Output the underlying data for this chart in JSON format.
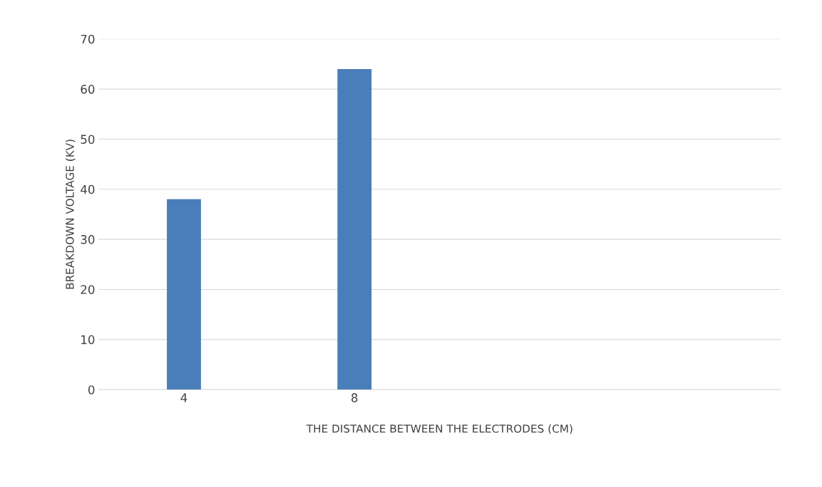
{
  "chart_data": {
    "type": "bar",
    "xlabel": "THE DISTANCE BETWEEN THE ELECTRODES (CM)",
    "ylabel": "BREAKDOWN VOLTAGE (KV)",
    "categories": [
      "4",
      "8",
      null,
      null
    ],
    "values": [
      38,
      64,
      null,
      null
    ],
    "color": "#4a7ebb",
    "ylim": [
      0,
      70
    ],
    "yticks": [
      0,
      10,
      20,
      30,
      40,
      50,
      60,
      70
    ],
    "grid": "y"
  }
}
